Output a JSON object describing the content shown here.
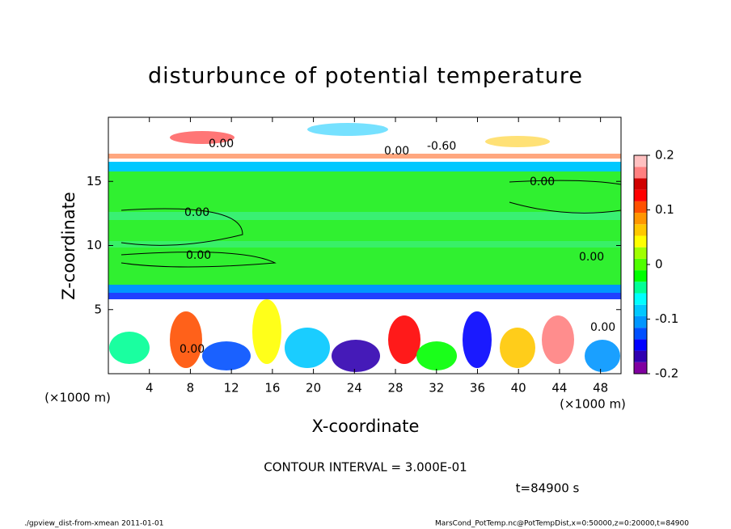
{
  "chart_data": {
    "type": "contour",
    "title": "disturbunce of potential temperature",
    "xlabel": "X-coordinate",
    "ylabel": "Z-coordinate",
    "x_unit": "(×1000 m)",
    "y_unit": "(×1000 m)",
    "xlim": [
      0,
      50
    ],
    "ylim": [
      0,
      20
    ],
    "xticks": [
      4,
      8,
      12,
      16,
      20,
      24,
      28,
      32,
      36,
      40,
      44,
      48
    ],
    "yticks": [
      5,
      10,
      15
    ],
    "colorbar": {
      "lim": [
        -0.2,
        0.2
      ],
      "ticks": [
        -0.2,
        -0.1,
        0,
        0.1,
        0.2
      ],
      "colors": [
        "#8000a0",
        "#3000b0",
        "#0000ff",
        "#0050ff",
        "#0096ff",
        "#00c8ff",
        "#00ffff",
        "#00ff96",
        "#00ff00",
        "#50ff00",
        "#a0ff00",
        "#ffff00",
        "#ffc800",
        "#ff9600",
        "#ff5000",
        "#ff0000",
        "#d00000",
        "#ff8080",
        "#ffc0c0"
      ]
    },
    "contour_labels": [
      "0.00",
      "0.00",
      "0.00",
      "0.00",
      "0.00",
      "0.00",
      "0.00",
      "0.00",
      "-0.60"
    ],
    "contour_interval": "CONTOUR INTERVAL = 3.000E-01",
    "time": "t=84900 s",
    "footer_left": "./gpview_dist-from-xmean  2011-01-01",
    "footer_right": "MarsCond_PotTemp.nc@PotTempDist,x=0:50000,z=0:20000,t=84900"
  }
}
